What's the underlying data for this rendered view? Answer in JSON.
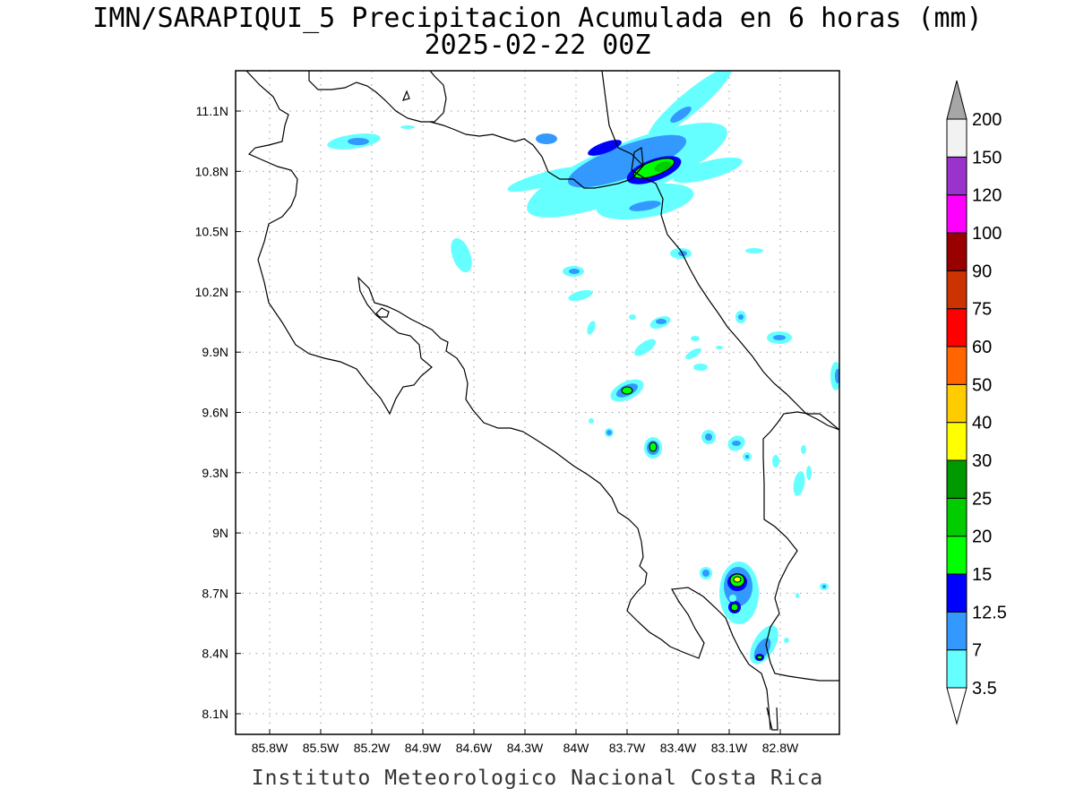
{
  "title": {
    "line1": "IMN/SARAPIQUI_5 Precipitacion Acumulada en 6 horas (mm)",
    "line2": "2025-02-22 00Z"
  },
  "footer": "Instituto Meteorologico Nacional Costa Rica",
  "axes": {
    "lon_ticks": [
      "85.8W",
      "85.5W",
      "85.2W",
      "84.9W",
      "84.6W",
      "84.3W",
      "84W",
      "83.7W",
      "83.4W",
      "83.1W",
      "82.8W"
    ],
    "lat_ticks": [
      "11.1N",
      "10.8N",
      "10.5N",
      "10.2N",
      "9.9N",
      "9.6N",
      "9.3N",
      "9N",
      "8.7N",
      "8.4N",
      "8.1N"
    ]
  },
  "colorbar": {
    "levels": [
      "3.5",
      "7",
      "12.5",
      "15",
      "20",
      "25",
      "30",
      "40",
      "50",
      "60",
      "75",
      "90",
      "100",
      "120",
      "150",
      "200"
    ],
    "colors": [
      "#66ffff",
      "#3399ff",
      "#0000ff",
      "#00ff00",
      "#00cc00",
      "#009900",
      "#ffff00",
      "#ffcc00",
      "#ff6600",
      "#ff0000",
      "#cc3300",
      "#990000",
      "#ff00ff",
      "#9933cc",
      "#f2f2f2",
      "#a6a6a6"
    ]
  },
  "precip_colors": {
    "light": "#66ffff",
    "mid": "#3399ff",
    "heavy": "#0000ff",
    "green": "#00ff00",
    "yellow": "#ffff00"
  }
}
